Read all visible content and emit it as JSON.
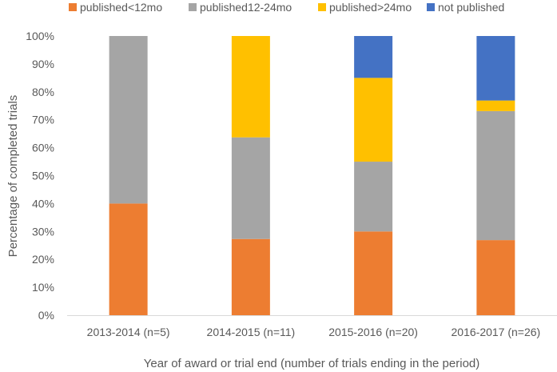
{
  "chart_data": {
    "type": "bar",
    "stacked": true,
    "percent_stacked": true,
    "title": "",
    "xlabel": "Year of award or trial end (number of trials ending in the period)",
    "ylabel": "Percentage of completed trials",
    "ylim": [
      0,
      100
    ],
    "yticks": [
      "0%",
      "10%",
      "20%",
      "30%",
      "40%",
      "50%",
      "60%",
      "70%",
      "80%",
      "90%",
      "100%"
    ],
    "grid": false,
    "legend_position": "top",
    "categories": [
      "2013-2014 (n=5)",
      "2014-2015 (n=11)",
      "2015-2016 (n=20)",
      "2016-2017 (n=26)"
    ],
    "series": [
      {
        "name": "published<12mo",
        "color": "#ED7D31",
        "values": [
          40,
          27.3,
          30,
          26.9
        ]
      },
      {
        "name": "published12-24mo",
        "color": "#A5A5A5",
        "values": [
          60,
          36.4,
          25,
          46.2
        ]
      },
      {
        "name": "published>24mo",
        "color": "#FFC000",
        "values": [
          0,
          36.3,
          30,
          3.8
        ]
      },
      {
        "name": "not published",
        "color": "#4472C4",
        "values": [
          0,
          0,
          15,
          23.1
        ]
      }
    ]
  }
}
